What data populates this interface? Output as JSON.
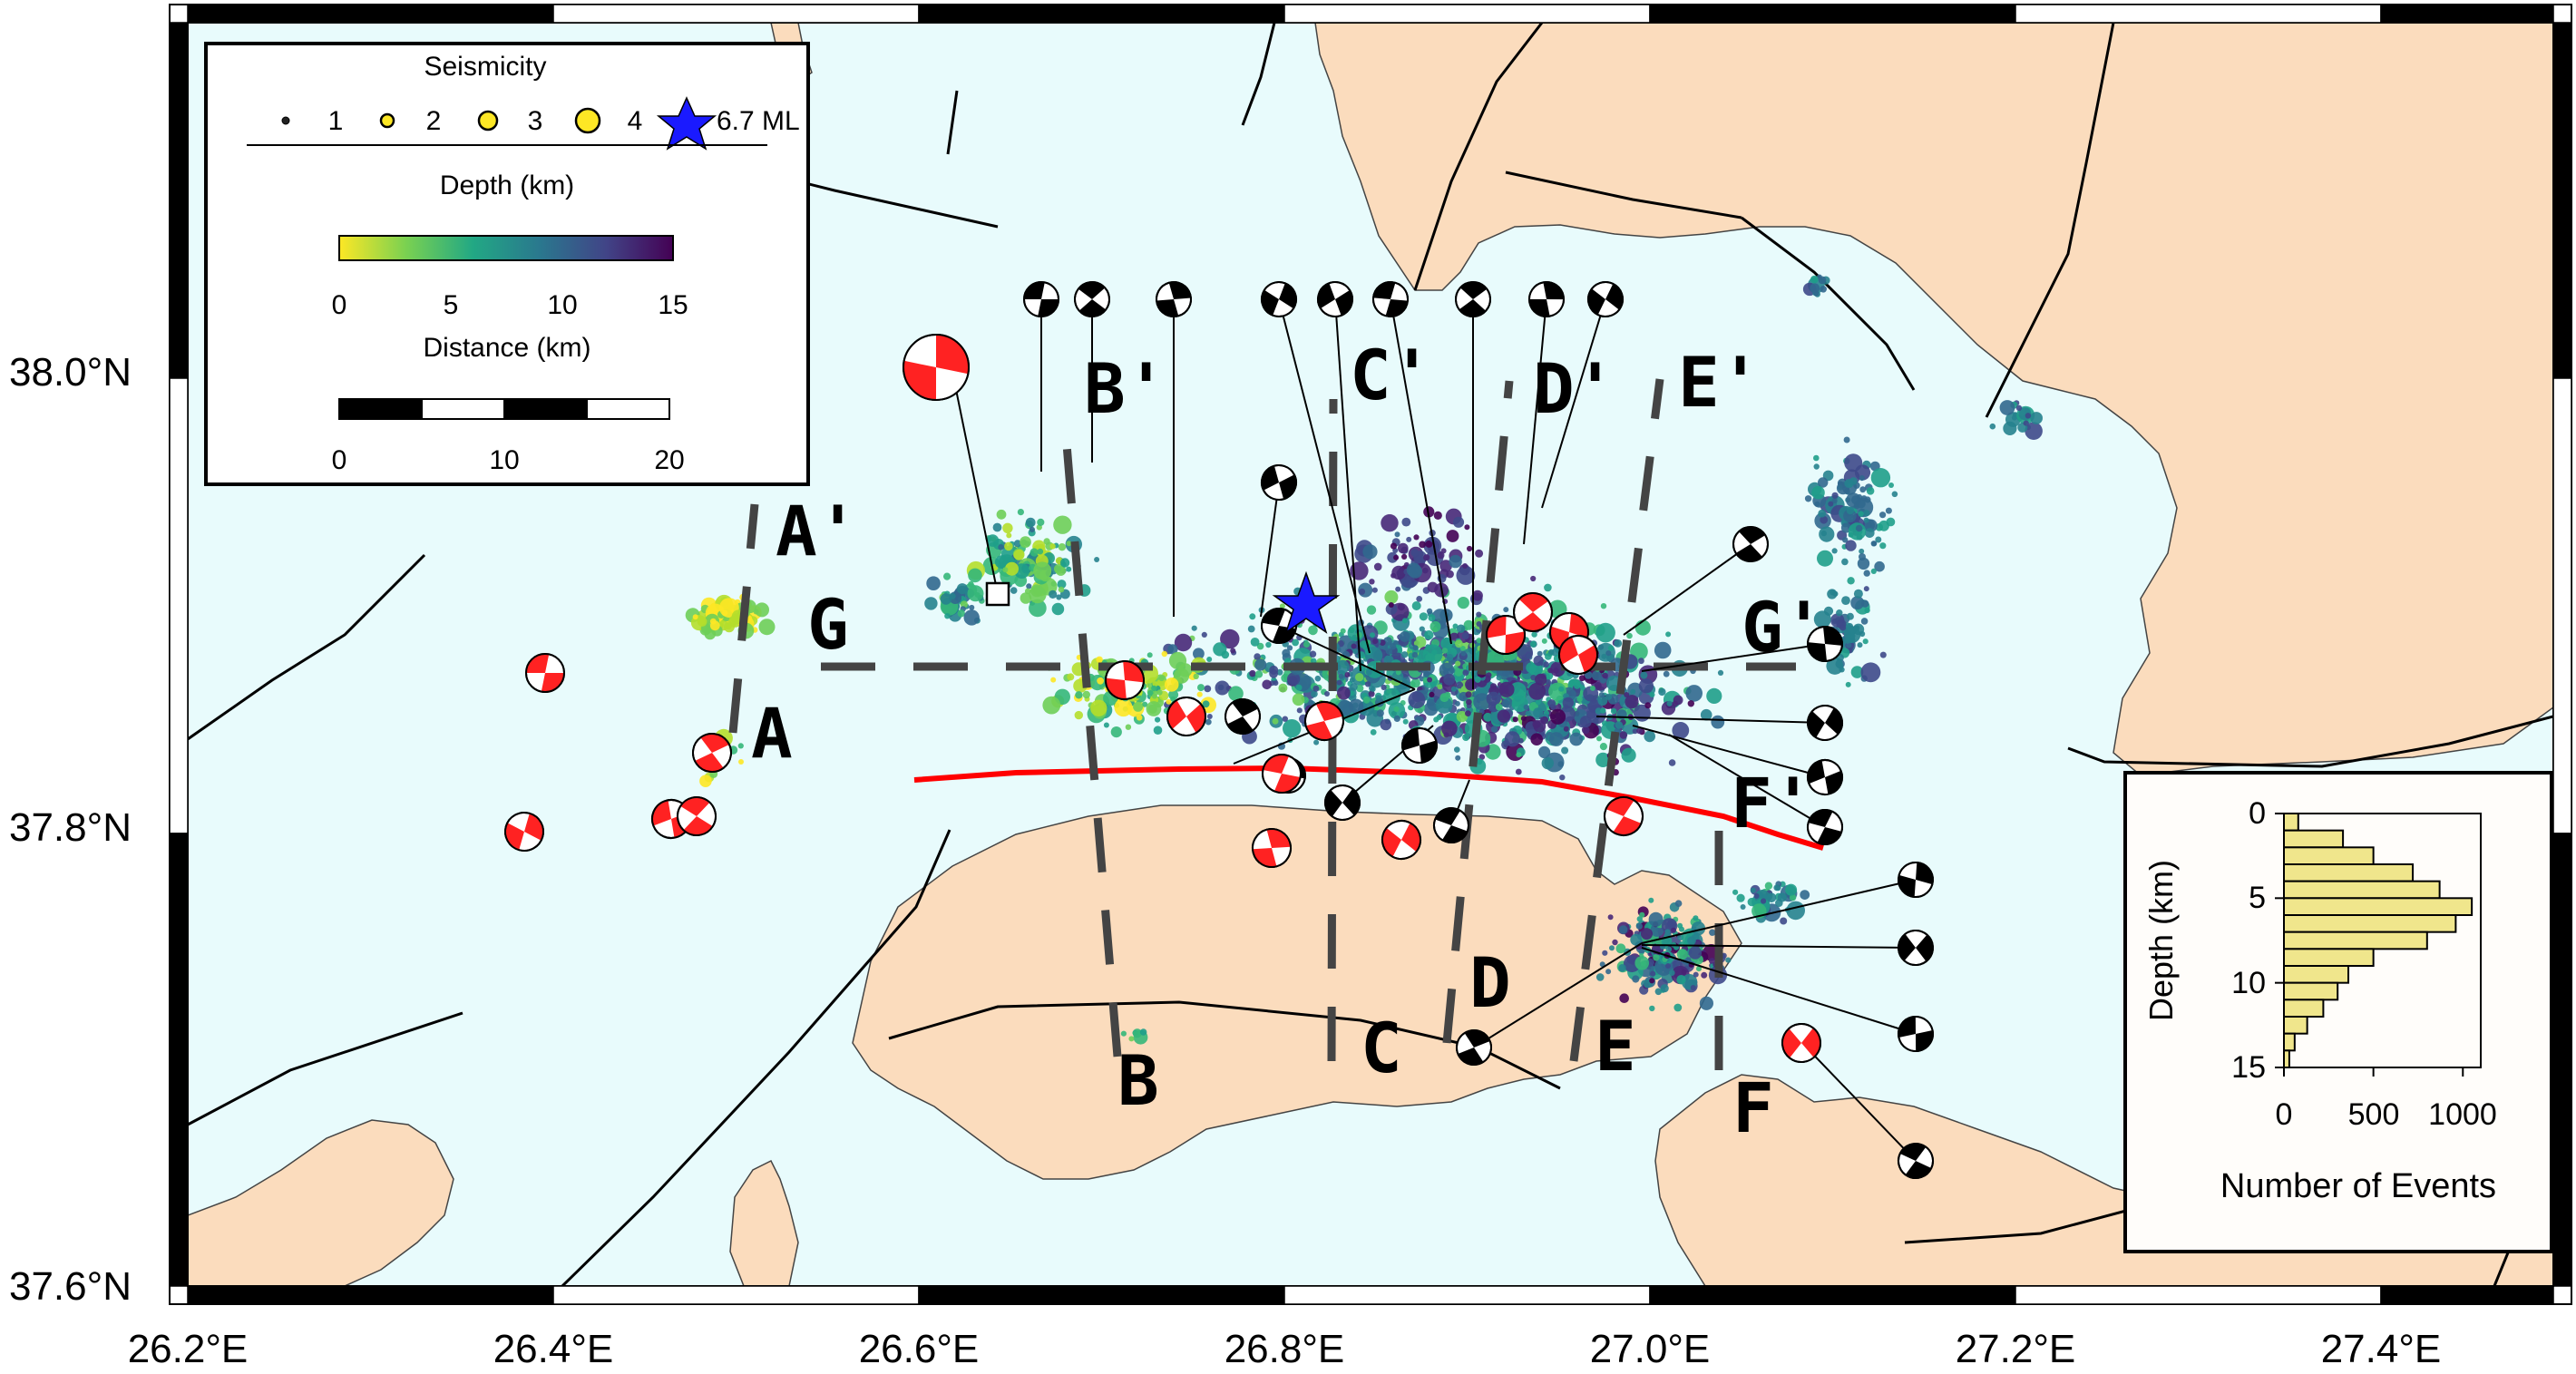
{
  "map": {
    "lon_ticks": [
      "26.2°E",
      "26.4°E",
      "26.6°E",
      "26.8°E",
      "27.0°E",
      "27.2°E",
      "27.4°E"
    ],
    "lat_ticks": [
      "38.0°N",
      "37.8°N",
      "37.6°N"
    ],
    "colors": {
      "sea": "#e8fbfc",
      "land": "#fbdcbd",
      "frame": "#000000",
      "fault_main": "#ff0000",
      "mainshock": "#1a1aff",
      "section_line": "#444444",
      "beachball_red": "#ff2222"
    },
    "sections": [
      {
        "start": "A",
        "end": "A'"
      },
      {
        "start": "B",
        "end": "B'"
      },
      {
        "start": "C",
        "end": "C'"
      },
      {
        "start": "D",
        "end": "D'"
      },
      {
        "start": "E",
        "end": "E'"
      },
      {
        "start": "F",
        "end": "F'"
      },
      {
        "start": "G",
        "end": "G'"
      }
    ],
    "mainshock_symbol": "star-icon"
  },
  "legend": {
    "title": "Seismicity",
    "magnitudes": [
      "1",
      "2",
      "3",
      "4"
    ],
    "mainshock_label": "6.7 ML",
    "depth_title": "Depth (km)",
    "colorbar_ticks": [
      "0",
      "5",
      "10",
      "15"
    ],
    "colorbar_colors": [
      "#fde725",
      "#7ad151",
      "#22a884",
      "#2a788e",
      "#414487",
      "#440154"
    ],
    "distance_title": "Distance (km)",
    "scalebar_ticks": [
      "0",
      "10",
      "20"
    ]
  },
  "inset": {
    "chart_data": {
      "type": "bar",
      "orientation": "horizontal",
      "ylabel": "Depth (km)",
      "xlabel": "Number of Events",
      "ylim": [
        15,
        0
      ],
      "xlim": [
        0,
        1100
      ],
      "y_ticks": [
        "0",
        "5",
        "10",
        "15"
      ],
      "x_ticks": [
        "0",
        "500",
        "1000"
      ],
      "bins": [
        0,
        1,
        2,
        3,
        4,
        5,
        6,
        7,
        8,
        9,
        10,
        11,
        12,
        13,
        14
      ],
      "values": [
        80,
        330,
        500,
        720,
        870,
        1050,
        960,
        800,
        500,
        360,
        300,
        220,
        130,
        60,
        30
      ],
      "bar_color": "#f0e68c"
    }
  }
}
